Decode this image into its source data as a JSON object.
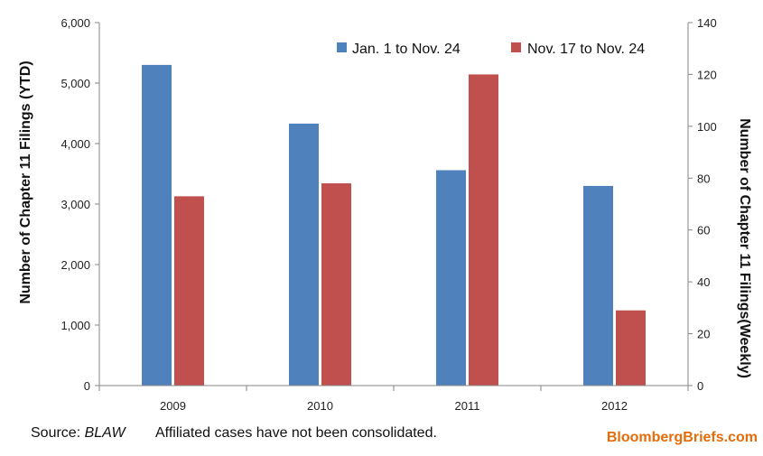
{
  "chart_data": {
    "type": "bar",
    "categories": [
      "2009",
      "2010",
      "2011",
      "2012"
    ],
    "series": [
      {
        "name": "Jan. 1 to Nov. 24",
        "axis": "left",
        "color": "#4F81BD",
        "values": [
          5300,
          4330,
          3560,
          3300
        ]
      },
      {
        "name": "Nov. 17 to Nov. 24",
        "axis": "right",
        "color": "#C0504D",
        "values": [
          73,
          78,
          120,
          29
        ]
      }
    ],
    "ylabel": "Number of Chapter 11 Filings (YTD)",
    "ylabel_right": "Number of Chapter 11 Filings(Weekly)",
    "ylim": [
      0,
      6000
    ],
    "ylim_right": [
      0,
      140
    ],
    "yticks": [
      "0",
      "1,000",
      "2,000",
      "3,000",
      "4,000",
      "5,000",
      "6,000"
    ],
    "yticks_right": [
      "0",
      "20",
      "40",
      "60",
      "80",
      "100",
      "120",
      "140"
    ],
    "grid": false,
    "legend_position": "top-right"
  },
  "footer": {
    "source_label": "Source: ",
    "source_name": "BLAW",
    "note": "Affiliated cases have not been consolidated.",
    "brand": "BloombergBriefs.com",
    "brand_color": "#E46C0A"
  }
}
